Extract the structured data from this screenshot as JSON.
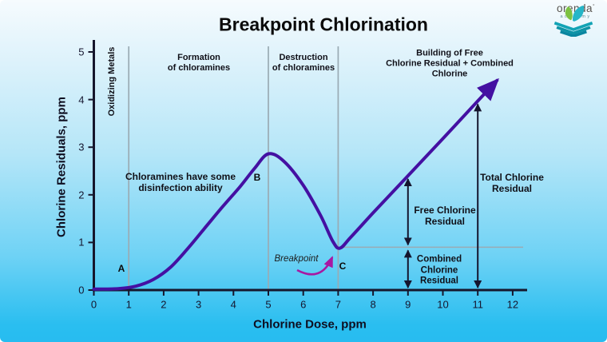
{
  "title": "Breakpoint Chlorination",
  "logo": {
    "name": "orenda",
    "mark": "°",
    "sub": "academy"
  },
  "axes": {
    "x_label": "Chlorine Dose, ppm",
    "y_label": "Chlorine Residuals, ppm"
  },
  "zones": {
    "oxidizing": "Oxidizing Metals",
    "formation": "Formation\nof chloramines",
    "destruction": "Destruction\nof chloramines",
    "building": "Building of Free\nChlorine Residual + Combined Chlorine"
  },
  "annotations": {
    "chloramines": "Chloramines have some\ndisinfection ability",
    "breakpoint": "Breakpoint",
    "point_a": "A",
    "point_b": "B",
    "point_c": "C",
    "free": "Free Chlorine\nResidual",
    "combined": "Combined\nChlorine\nResidual",
    "total": "Total Chlorine\nResidual"
  },
  "chart_data": {
    "type": "line",
    "title": "Breakpoint Chlorination",
    "xlabel": "Chlorine Dose, ppm",
    "ylabel": "Chlorine Residuals, ppm",
    "xlim": [
      0,
      12.4
    ],
    "ylim": [
      0,
      5.25
    ],
    "x_ticks": [
      0,
      1,
      2,
      3,
      4,
      5,
      6,
      7,
      8,
      9,
      10,
      11,
      12
    ],
    "y_ticks": [
      0,
      1,
      2,
      3,
      4,
      5
    ],
    "grid": "off",
    "series": [
      {
        "name": "Chlorine Residual",
        "color": "#4410a2",
        "points": [
          [
            0,
            0.02
          ],
          [
            0.7,
            0.03
          ],
          [
            1.2,
            0.08
          ],
          [
            1.7,
            0.22
          ],
          [
            2.2,
            0.48
          ],
          [
            2.7,
            0.88
          ],
          [
            3.2,
            1.32
          ],
          [
            3.7,
            1.76
          ],
          [
            4.2,
            2.18
          ],
          [
            4.6,
            2.55
          ],
          [
            5,
            2.86
          ],
          [
            5.45,
            2.7
          ],
          [
            6,
            2.2
          ],
          [
            6.5,
            1.56
          ],
          [
            6.85,
            1.02
          ],
          [
            7.05,
            0.88
          ],
          [
            7.35,
            1.1
          ],
          [
            8,
            1.62
          ],
          [
            9,
            2.4
          ],
          [
            10,
            3.18
          ],
          [
            11,
            3.97
          ],
          [
            11.55,
            4.4
          ]
        ],
        "ends_with_arrow": true
      }
    ],
    "key_points": [
      {
        "label": "A",
        "x": 1,
        "y": 0.35
      },
      {
        "label": "B",
        "x": 4.7,
        "y": 2.35,
        "meaning": "peak of combined chlorine at dose 5"
      },
      {
        "label": "C",
        "x": 7.1,
        "y": 0.5,
        "meaning": "breakpoint dip at dose 7, residual 0.9"
      }
    ],
    "zone_boundaries_x": [
      1,
      5,
      7
    ],
    "reference_line": {
      "y": 0.9,
      "x_start": 7,
      "x_end": 12.3
    },
    "measure_arrows": [
      {
        "x": 9,
        "y_from": 0.9,
        "y_to": 2.4,
        "label": "Free Chlorine Residual"
      },
      {
        "x": 9,
        "y_from": 0,
        "y_to": 0.9,
        "label": "Combined Chlorine Residual"
      },
      {
        "x": 11,
        "y_from": 0,
        "y_to": 3.97,
        "label": "Total Chlorine Residual"
      }
    ],
    "colors": {
      "curve": "#4410a2",
      "breakpoint_arrow": "#a818a2",
      "axis": "#16162c",
      "zone_line": "#9aabb4",
      "background_top": "#f6fbfe",
      "background_bottom": "#27bcf0"
    }
  }
}
